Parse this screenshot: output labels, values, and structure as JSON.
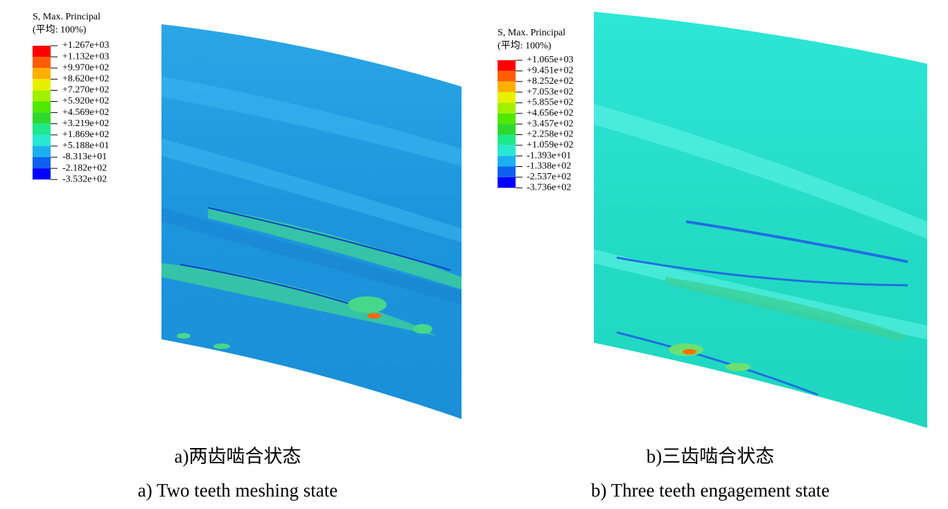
{
  "panels": [
    {
      "legend": {
        "title": "S, Max. Principal",
        "subtitle": "(平均: 100%)",
        "labels": [
          "+1.267e+03",
          "+1.132e+03",
          "+9.970e+02",
          "+8.620e+02",
          "+7.270e+02",
          "+5.920e+02",
          "+4.569e+02",
          "+3.219e+02",
          "+1.869e+02",
          "+5.188e+01",
          "-8.313e+01",
          "-2.182e+02",
          "-3.532e+02"
        ]
      },
      "caption_cn": "a)两齿啮合状态",
      "caption_en": "a) Two teeth meshing state"
    },
    {
      "legend": {
        "title": "S, Max. Principal",
        "subtitle": "(平均: 100%)",
        "labels": [
          "+1.065e+03",
          "+9.451e+02",
          "+8.252e+02",
          "+7.053e+02",
          "+5.855e+02",
          "+4.656e+02",
          "+3.457e+02",
          "+2.258e+02",
          "+1.059e+02",
          "-1.393e+01",
          "-1.338e+02",
          "-2.537e+02",
          "-3.736e+02"
        ]
      },
      "caption_cn": "b)三齿啮合状态",
      "caption_en": "b) Three teeth engagement state"
    }
  ]
}
